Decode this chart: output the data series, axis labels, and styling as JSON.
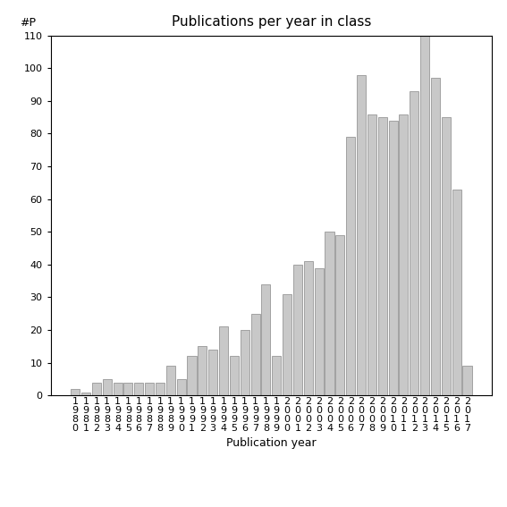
{
  "title": "Publications per year in class",
  "xlabel": "Publication year",
  "ylabel": "#P",
  "bar_color": "#c8c8c8",
  "edge_color": "#888888",
  "background_color": "#ffffff",
  "ylim": [
    0,
    110
  ],
  "yticks": [
    0,
    10,
    20,
    30,
    40,
    50,
    60,
    70,
    80,
    90,
    100,
    110
  ],
  "years": [
    "1980",
    "1981",
    "1982",
    "1983",
    "1984",
    "1985",
    "1986",
    "1987",
    "1988",
    "1989",
    "1990",
    "1991",
    "1992",
    "1993",
    "1994",
    "1995",
    "1996",
    "1997",
    "1998",
    "1999",
    "2000",
    "2001",
    "2002",
    "2003",
    "2004",
    "2005",
    "2006",
    "2007",
    "2008",
    "2009",
    "2010",
    "2011",
    "2012",
    "2013",
    "2014",
    "2015",
    "2016",
    "2017"
  ],
  "values": [
    2,
    1,
    4,
    5,
    4,
    4,
    4,
    4,
    4,
    9,
    5,
    12,
    15,
    14,
    21,
    12,
    20,
    25,
    34,
    12,
    31,
    40,
    41,
    39,
    50,
    49,
    79,
    98,
    86,
    85,
    84,
    86,
    93,
    110,
    97,
    85,
    63,
    9
  ],
  "title_fontsize": 11,
  "label_fontsize": 9,
  "tick_fontsize": 8
}
